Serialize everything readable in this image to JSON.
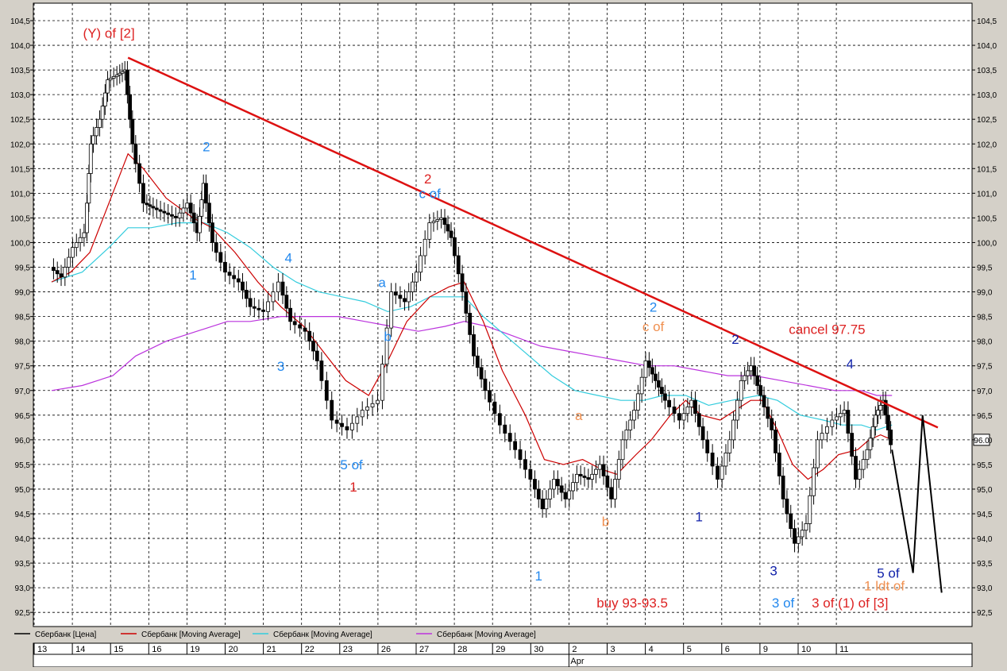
{
  "chart_data": {
    "type": "candlestick",
    "title": "",
    "y_range": [
      92.25,
      104.75
    ],
    "y_ticks": [
      "92,5",
      "93,0",
      "93,5",
      "94,0",
      "94,5",
      "95,0",
      "95,5",
      "96,0",
      "96,5",
      "97,0",
      "97,5",
      "98,0",
      "98,5",
      "99,0",
      "99,5",
      "100,0",
      "100,5",
      "101,0",
      "101,5",
      "102,0",
      "102,5",
      "103,0",
      "103,5",
      "104,0",
      "104,5"
    ],
    "last_price_label": "96.0",
    "grid": true,
    "x_dates": [
      "13",
      "14",
      "15",
      "16",
      "19",
      "20",
      "21",
      "22",
      "23",
      "26",
      "27",
      "28",
      "29",
      "30",
      "2",
      "3",
      "4",
      "5",
      "6",
      "9",
      "10",
      "11"
    ],
    "month_label": "Apr",
    "legend": [
      {
        "name": "Сбербанк [Цена]",
        "color": "#000000"
      },
      {
        "name": "Сбербанк [Moving Average]",
        "color": "#cc0000"
      },
      {
        "name": "Сбербанк [Moving Average]",
        "color": "#33ccdd"
      },
      {
        "name": "Сбербанк [Moving Average]",
        "color": "#bb33dd"
      }
    ],
    "price_path": [
      [
        0,
        99.5
      ],
      [
        0.3,
        99.3
      ],
      [
        0.6,
        99.9
      ],
      [
        0.9,
        100.2
      ],
      [
        1.05,
        102.0
      ],
      [
        1.3,
        102.5
      ],
      [
        1.5,
        103.3
      ],
      [
        1.75,
        103.4
      ],
      [
        1.95,
        103.5
      ],
      [
        2.15,
        102.0
      ],
      [
        2.45,
        100.8
      ],
      [
        2.7,
        100.7
      ],
      [
        3.0,
        100.6
      ],
      [
        3.3,
        100.5
      ],
      [
        3.6,
        100.8
      ],
      [
        3.85,
        100.2
      ],
      [
        4.0,
        101.2
      ],
      [
        4.25,
        100.0
      ],
      [
        4.6,
        99.4
      ],
      [
        4.95,
        99.2
      ],
      [
        5.25,
        98.7
      ],
      [
        5.6,
        98.6
      ],
      [
        6.0,
        99.2
      ],
      [
        6.3,
        98.4
      ],
      [
        6.7,
        98.2
      ],
      [
        7.0,
        97.6
      ],
      [
        7.4,
        96.4
      ],
      [
        7.8,
        96.2
      ],
      [
        8.2,
        96.6
      ],
      [
        8.6,
        96.8
      ],
      [
        8.95,
        99.0
      ],
      [
        9.3,
        98.8
      ],
      [
        9.6,
        99.4
      ],
      [
        9.95,
        100.4
      ],
      [
        10.25,
        100.5
      ],
      [
        10.5,
        100.1
      ],
      [
        10.8,
        99.0
      ],
      [
        11.1,
        97.7
      ],
      [
        11.4,
        97.0
      ],
      [
        11.8,
        96.3
      ],
      [
        12.2,
        95.8
      ],
      [
        12.6,
        95.2
      ],
      [
        12.9,
        94.6
      ],
      [
        13.2,
        95.2
      ],
      [
        13.5,
        94.8
      ],
      [
        13.8,
        95.3
      ],
      [
        14.1,
        95.2
      ],
      [
        14.4,
        95.5
      ],
      [
        14.7,
        94.8
      ],
      [
        15.0,
        96.0
      ],
      [
        15.3,
        96.6
      ],
      [
        15.6,
        97.6
      ],
      [
        15.85,
        97.2
      ],
      [
        16.1,
        96.8
      ],
      [
        16.5,
        96.4
      ],
      [
        16.8,
        96.8
      ],
      [
        17.1,
        96.0
      ],
      [
        17.5,
        95.2
      ],
      [
        17.8,
        96.0
      ],
      [
        18.1,
        97.2
      ],
      [
        18.35,
        97.5
      ],
      [
        18.6,
        96.9
      ],
      [
        18.9,
        96.2
      ],
      [
        19.2,
        94.8
      ],
      [
        19.5,
        93.9
      ],
      [
        19.8,
        94.3
      ],
      [
        20.1,
        96.0
      ],
      [
        20.5,
        96.4
      ],
      [
        20.8,
        96.6
      ],
      [
        21.1,
        95.2
      ],
      [
        21.4,
        95.8
      ],
      [
        21.6,
        96.5
      ],
      [
        21.8,
        96.8
      ],
      [
        22.0,
        95.9
      ]
    ],
    "trendline": {
      "x": [
        2.0,
        23.2
      ],
      "y": [
        103.75,
        96.25
      ]
    },
    "projection": [
      [
        22.0,
        95.8
      ],
      [
        22.55,
        93.3
      ],
      [
        22.8,
        96.5
      ],
      [
        23.3,
        92.9
      ]
    ],
    "ma_fast": [
      [
        0,
        99.2
      ],
      [
        0.5,
        99.4
      ],
      [
        1.0,
        99.8
      ],
      [
        1.6,
        101.0
      ],
      [
        2.0,
        101.8
      ],
      [
        2.4,
        101.5
      ],
      [
        3.0,
        100.9
      ],
      [
        3.7,
        100.5
      ],
      [
        4.2,
        100.3
      ],
      [
        4.8,
        99.8
      ],
      [
        5.4,
        99.2
      ],
      [
        6.0,
        98.7
      ],
      [
        6.6,
        98.3
      ],
      [
        7.1,
        97.8
      ],
      [
        7.7,
        97.2
      ],
      [
        8.3,
        96.9
      ],
      [
        8.8,
        97.6
      ],
      [
        9.3,
        98.4
      ],
      [
        9.9,
        98.9
      ],
      [
        10.4,
        99.1
      ],
      [
        10.8,
        99.2
      ],
      [
        11.3,
        98.4
      ],
      [
        11.8,
        97.4
      ],
      [
        12.4,
        96.5
      ],
      [
        12.9,
        95.6
      ],
      [
        13.4,
        95.5
      ],
      [
        13.9,
        95.6
      ],
      [
        14.4,
        95.4
      ],
      [
        14.8,
        95.3
      ],
      [
        15.3,
        95.7
      ],
      [
        15.7,
        96.0
      ],
      [
        16.2,
        96.5
      ],
      [
        16.6,
        96.8
      ],
      [
        17.0,
        96.5
      ],
      [
        17.5,
        96.4
      ],
      [
        17.9,
        96.6
      ],
      [
        18.3,
        96.8
      ],
      [
        18.6,
        96.8
      ],
      [
        19.0,
        96.2
      ],
      [
        19.4,
        95.5
      ],
      [
        19.8,
        95.2
      ],
      [
        20.2,
        95.4
      ],
      [
        20.6,
        95.7
      ],
      [
        21.1,
        95.8
      ],
      [
        21.4,
        96.0
      ],
      [
        21.7,
        96.1
      ],
      [
        22.0,
        96.0
      ]
    ],
    "ma_mid": [
      [
        0,
        99.2
      ],
      [
        0.8,
        99.4
      ],
      [
        1.5,
        99.9
      ],
      [
        2.0,
        100.3
      ],
      [
        2.6,
        100.3
      ],
      [
        3.3,
        100.4
      ],
      [
        4.0,
        100.4
      ],
      [
        4.6,
        100.2
      ],
      [
        5.2,
        99.9
      ],
      [
        5.8,
        99.5
      ],
      [
        6.4,
        99.2
      ],
      [
        7.0,
        99.0
      ],
      [
        7.6,
        98.9
      ],
      [
        8.2,
        98.8
      ],
      [
        8.8,
        98.6
      ],
      [
        9.4,
        98.7
      ],
      [
        9.9,
        98.9
      ],
      [
        10.4,
        98.9
      ],
      [
        10.8,
        98.9
      ],
      [
        11.3,
        98.5
      ],
      [
        11.9,
        98.1
      ],
      [
        12.5,
        97.7
      ],
      [
        13.1,
        97.3
      ],
      [
        13.7,
        97.0
      ],
      [
        14.3,
        96.9
      ],
      [
        14.9,
        96.8
      ],
      [
        15.5,
        96.8
      ],
      [
        16.0,
        96.9
      ],
      [
        16.6,
        96.9
      ],
      [
        17.2,
        96.7
      ],
      [
        17.8,
        96.8
      ],
      [
        18.5,
        96.9
      ],
      [
        19.0,
        96.8
      ],
      [
        19.6,
        96.5
      ],
      [
        20.2,
        96.4
      ],
      [
        20.7,
        96.3
      ],
      [
        21.2,
        96.3
      ],
      [
        21.6,
        96.2
      ],
      [
        22.0,
        96.3
      ]
    ],
    "ma_slow": [
      [
        0,
        97.0
      ],
      [
        0.8,
        97.1
      ],
      [
        1.6,
        97.3
      ],
      [
        2.2,
        97.7
      ],
      [
        3.0,
        98.0
      ],
      [
        3.8,
        98.2
      ],
      [
        4.6,
        98.4
      ],
      [
        5.2,
        98.4
      ],
      [
        6.0,
        98.5
      ],
      [
        6.8,
        98.5
      ],
      [
        7.5,
        98.5
      ],
      [
        8.2,
        98.4
      ],
      [
        8.9,
        98.3
      ],
      [
        9.6,
        98.2
      ],
      [
        10.3,
        98.3
      ],
      [
        10.8,
        98.4
      ],
      [
        11.4,
        98.3
      ],
      [
        12.1,
        98.1
      ],
      [
        12.8,
        97.9
      ],
      [
        13.5,
        97.8
      ],
      [
        14.2,
        97.7
      ],
      [
        14.9,
        97.6
      ],
      [
        15.6,
        97.5
      ],
      [
        16.3,
        97.5
      ],
      [
        17.0,
        97.4
      ],
      [
        17.7,
        97.3
      ],
      [
        18.4,
        97.3
      ],
      [
        19.1,
        97.2
      ],
      [
        19.8,
        97.1
      ],
      [
        20.5,
        97.0
      ],
      [
        21.2,
        97.0
      ],
      [
        21.6,
        96.9
      ],
      [
        22.0,
        96.9
      ]
    ],
    "annotations": [
      {
        "text": "(Y) of [2]",
        "x": 1.5,
        "y": 104.15,
        "color": "#dd2222"
      },
      {
        "text": "2",
        "x": 4.05,
        "y": 101.85,
        "color": "#2288ee"
      },
      {
        "text": "1",
        "x": 3.7,
        "y": 99.25,
        "color": "#2288ee"
      },
      {
        "text": "4",
        "x": 6.2,
        "y": 99.6,
        "color": "#2288ee"
      },
      {
        "text": "3",
        "x": 6.0,
        "y": 97.4,
        "color": "#2288ee"
      },
      {
        "text": "5 of",
        "x": 7.85,
        "y": 95.4,
        "color": "#2288ee"
      },
      {
        "text": "1",
        "x": 7.9,
        "y": 94.95,
        "color": "#dd2222"
      },
      {
        "text": "2",
        "x": 9.85,
        "y": 101.2,
        "color": "#dd2222"
      },
      {
        "text": "c of",
        "x": 9.9,
        "y": 100.9,
        "color": "#2288ee"
      },
      {
        "text": "a",
        "x": 8.65,
        "y": 99.1,
        "color": "#2288ee"
      },
      {
        "text": "b",
        "x": 8.8,
        "y": 98.0,
        "color": "#2288ee"
      },
      {
        "text": "1",
        "x": 12.75,
        "y": 93.15,
        "color": "#2288ee"
      },
      {
        "text": "a",
        "x": 13.8,
        "y": 96.4,
        "color": "#f09050"
      },
      {
        "text": "b",
        "x": 14.5,
        "y": 94.25,
        "color": "#f09050"
      },
      {
        "text": "2",
        "x": 15.75,
        "y": 98.6,
        "color": "#2288ee"
      },
      {
        "text": "c of",
        "x": 15.75,
        "y": 98.2,
        "color": "#f09050"
      },
      {
        "text": "1",
        "x": 16.95,
        "y": 94.35,
        "color": "#1122aa"
      },
      {
        "text": "2",
        "x": 17.9,
        "y": 97.95,
        "color": "#1122aa"
      },
      {
        "text": "cancel 97.75",
        "x": 20.3,
        "y": 98.15,
        "color": "#dd2222"
      },
      {
        "text": "4",
        "x": 20.9,
        "y": 97.45,
        "color": "#1122aa"
      },
      {
        "text": "3",
        "x": 18.9,
        "y": 93.25,
        "color": "#1122aa"
      },
      {
        "text": "5 of",
        "x": 21.9,
        "y": 93.2,
        "color": "#1122aa"
      },
      {
        "text": "1 ldt of",
        "x": 21.8,
        "y": 92.95,
        "color": "#f09050"
      },
      {
        "text": "buy 93-93.5",
        "x": 15.2,
        "y": 92.6,
        "color": "#dd2222"
      },
      {
        "text": "3 of",
        "x": 19.15,
        "y": 92.6,
        "color": "#2288ee"
      },
      {
        "text": "3 of (1) of [3]",
        "x": 20.9,
        "y": 92.6,
        "color": "#dd2222"
      }
    ]
  }
}
